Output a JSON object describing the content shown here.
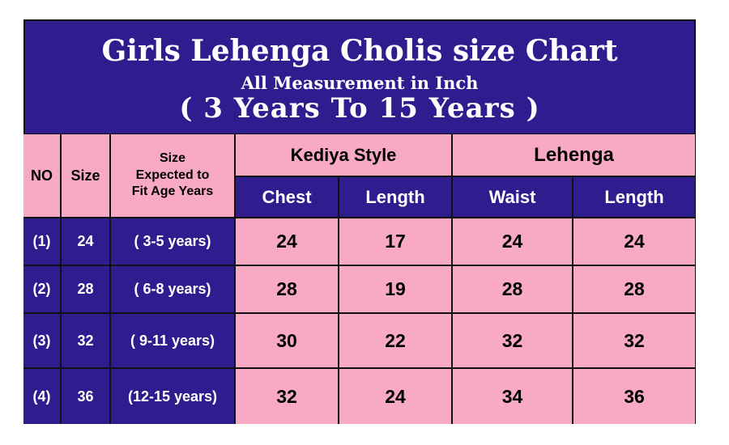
{
  "colors": {
    "navy": "#2f1c8f",
    "pink": "#f8a9c4"
  },
  "title": "Girls Lehenga Cholis size Chart",
  "subtitle": "All Measurement in Inch",
  "range": "( 3 Years To 15 Years )",
  "headers": {
    "no": "NO",
    "size": "Size",
    "age_line1": "Size",
    "age_line2": "Expected to",
    "age_line3": "Fit Age Years",
    "kediya": "Kediya Style",
    "lehenga": "Lehenga",
    "chest": "Chest",
    "k_length": "Length",
    "waist": "Waist",
    "l_length": "Length"
  },
  "rows": [
    {
      "no": "(1)",
      "size": "24",
      "age": "( 3-5 years)",
      "chest": "24",
      "k_length": "17",
      "waist": "24",
      "l_length": "24"
    },
    {
      "no": "(2)",
      "size": "28",
      "age": "( 6-8 years)",
      "chest": "28",
      "k_length": "19",
      "waist": "28",
      "l_length": "28"
    },
    {
      "no": "(3)",
      "size": "32",
      "age": "( 9-11 years)",
      "chest": "30",
      "k_length": "22",
      "waist": "32",
      "l_length": "32"
    },
    {
      "no": "(4)",
      "size": "36",
      "age": "(12-15 years)",
      "chest": "32",
      "k_length": "24",
      "waist": "34",
      "l_length": "36"
    }
  ]
}
